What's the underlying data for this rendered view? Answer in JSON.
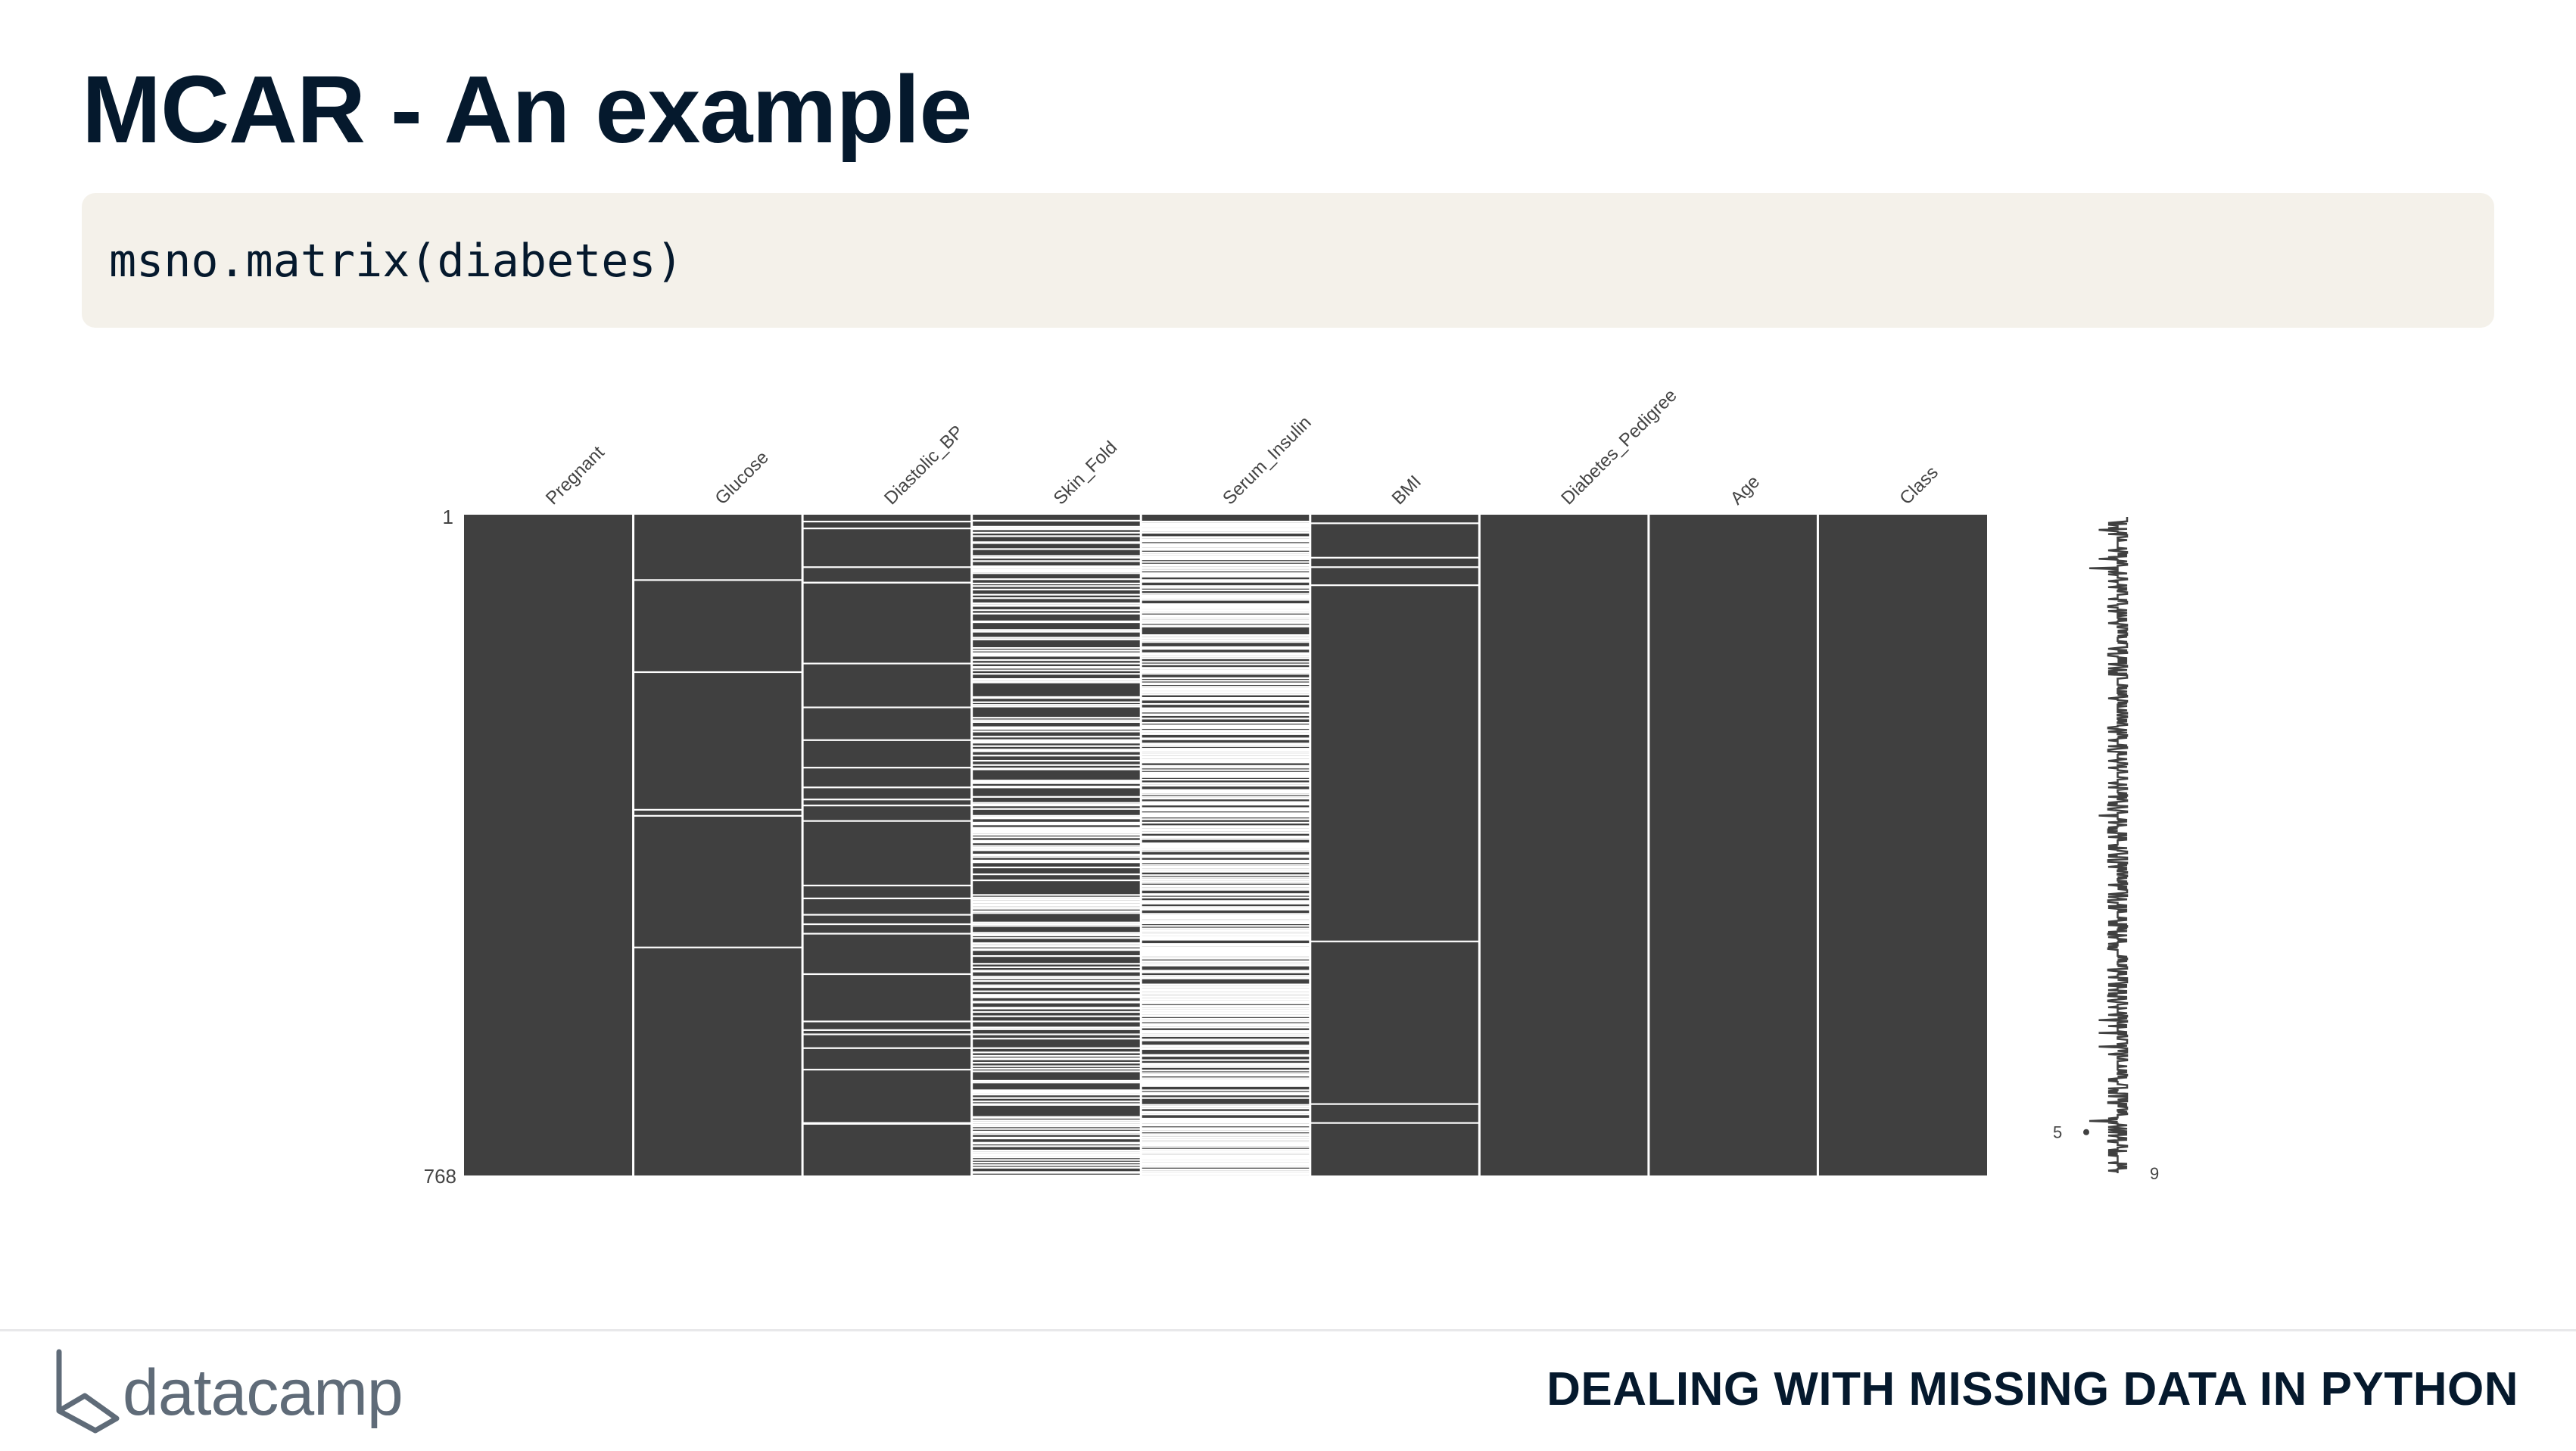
{
  "slide": {
    "title": "MCAR - An example",
    "code": "msno.matrix(diabetes)",
    "footer_course": "DEALING WITH MISSING DATA IN PYTHON",
    "logo_text": "datacamp"
  },
  "colors": {
    "cell_present": "#404040",
    "cell_missing": "#ffffff",
    "title": "#05192d",
    "code_bg": "#f4f1ea",
    "logo": "#5f6b78"
  },
  "chart_data": {
    "type": "heatmap",
    "title": "",
    "columns": [
      "Pregnant",
      "Glucose",
      "Diastolic_BP",
      "Skin_Fold",
      "Serum_Insulin",
      "BMI",
      "Diabetes_Pedigree",
      "Age",
      "Class"
    ],
    "row_range": [
      1,
      768
    ],
    "y_tick_labels": [
      "1",
      "768"
    ],
    "sparkline_labels": {
      "min": "5",
      "max": "9"
    },
    "missing_rows": {
      "Pregnant": [],
      "Glucose": [
        76,
        183,
        343,
        350,
        503
      ],
      "Diastolic_BP": [
        8,
        16,
        61,
        79,
        79,
        173,
        224,
        262,
        294,
        317,
        331,
        338,
        356,
        431,
        446,
        465,
        476,
        487,
        534,
        589,
        599,
        604,
        620,
        645,
        707,
        708
      ],
      "Skin_Fold": "dense",
      "Serum_Insulin": "dense",
      "BMI": [
        10,
        50,
        61,
        82,
        496,
        685,
        707
      ],
      "Diabetes_Pedigree": [],
      "Age": [],
      "Class": []
    },
    "grid": false
  }
}
